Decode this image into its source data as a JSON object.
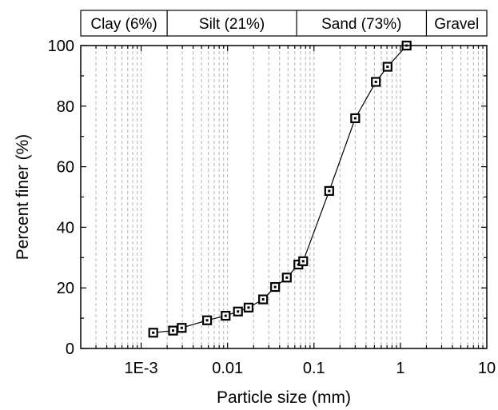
{
  "chart_data": {
    "type": "scatter",
    "xscale": "log",
    "xlim": [
      0.0002,
      10
    ],
    "ylim": [
      0,
      100
    ],
    "xlabel": "Particle size (mm)",
    "ylabel": "Percent finer (%)",
    "grid": "vertical minor dashed",
    "x_ticks": [
      {
        "value": 0.001,
        "label": "1E-3"
      },
      {
        "value": 0.01,
        "label": "0.01"
      },
      {
        "value": 0.1,
        "label": "0.1"
      },
      {
        "value": 1,
        "label": "1"
      },
      {
        "value": 10,
        "label": "10"
      }
    ],
    "y_ticks": [
      {
        "value": 0,
        "label": "0"
      },
      {
        "value": 20,
        "label": "20"
      },
      {
        "value": 40,
        "label": "40"
      },
      {
        "value": 60,
        "label": "60"
      },
      {
        "value": 80,
        "label": "80"
      },
      {
        "value": 100,
        "label": "100"
      }
    ],
    "size_classes": [
      {
        "label": "Clay (6%)",
        "from": 0.0002,
        "to": 0.002
      },
      {
        "label": "Silt (21%)",
        "from": 0.002,
        "to": 0.063
      },
      {
        "label": "Sand (73%)",
        "from": 0.063,
        "to": 2
      },
      {
        "label": "Gravel",
        "from": 2,
        "to": 10
      }
    ],
    "series": [
      {
        "marker": "open-square",
        "line": true,
        "points": [
          {
            "x": 0.00138,
            "y": 5.2
          },
          {
            "x": 0.00234,
            "y": 5.9
          },
          {
            "x": 0.00295,
            "y": 6.8
          },
          {
            "x": 0.0058,
            "y": 9.3
          },
          {
            "x": 0.0095,
            "y": 10.8
          },
          {
            "x": 0.0132,
            "y": 12.2
          },
          {
            "x": 0.0175,
            "y": 13.5
          },
          {
            "x": 0.0258,
            "y": 16.2
          },
          {
            "x": 0.0355,
            "y": 20.3
          },
          {
            "x": 0.0485,
            "y": 23.4
          },
          {
            "x": 0.066,
            "y": 27.7
          },
          {
            "x": 0.075,
            "y": 28.8
          },
          {
            "x": 0.15,
            "y": 52
          },
          {
            "x": 0.3,
            "y": 76
          },
          {
            "x": 0.52,
            "y": 88
          },
          {
            "x": 0.71,
            "y": 93
          },
          {
            "x": 1.18,
            "y": 100
          }
        ]
      }
    ]
  },
  "colors": {
    "line": "#000000",
    "grid": "#b3b3b3"
  }
}
